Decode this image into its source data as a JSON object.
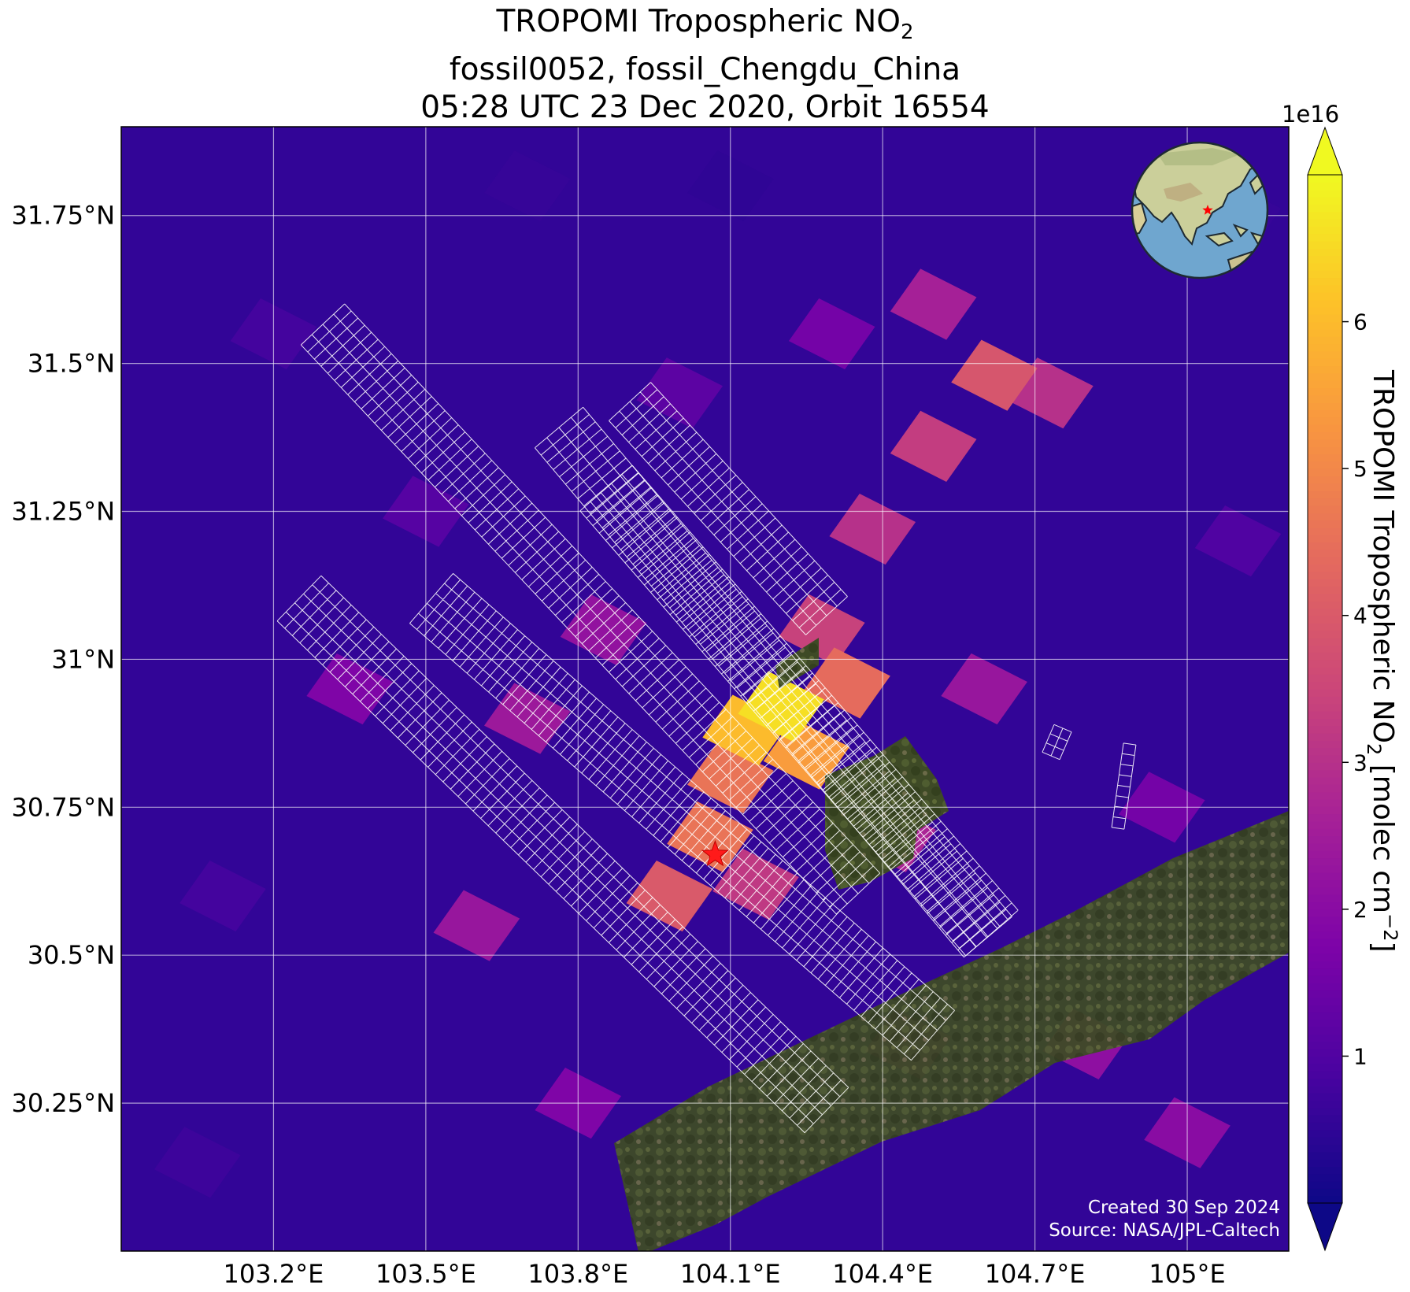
{
  "title": {
    "line1_prefix": "TROPOMI Tropospheric NO",
    "line1_sub": "2",
    "line2": "fossil0052, fossil_Chengdu_China",
    "line3": "05:28 UTC 23 Dec 2020, Orbit 16554"
  },
  "colorbar": {
    "label_prefix": "TROPOMI Tropospheric NO",
    "label_sub": "2",
    "label_units_prefix": " [molec cm",
    "label_sup": "−2",
    "label_suffix": "]",
    "exponent": "1e16",
    "colormap": "plasma",
    "range": [
      0,
      7
    ],
    "extend": "both",
    "ticks": [
      1,
      2,
      3,
      4,
      5,
      6
    ],
    "tick_labels": [
      "1",
      "2",
      "3",
      "4",
      "5",
      "6"
    ]
  },
  "credit": {
    "line1": "Created 30 Sep 2024",
    "line2": "Source: NASA/JPL-Caltech"
  },
  "inset": {
    "type": "orthographic-globe",
    "marker": "red-star"
  },
  "chart_data": {
    "type": "heatmap",
    "projection": "PlateCarree",
    "xlim": [
      102.9,
      105.2
    ],
    "ylim": [
      30.0,
      31.9
    ],
    "x_ticks": [
      103.2,
      103.5,
      103.8,
      104.1,
      104.4,
      104.7,
      105.0
    ],
    "x_tick_labels": [
      "103.2°E",
      "103.5°E",
      "103.8°E",
      "104.1°E",
      "104.4°E",
      "104.7°E",
      "105°E"
    ],
    "y_ticks": [
      30.25,
      30.5,
      30.75,
      31.0,
      31.25,
      31.5,
      31.75
    ],
    "y_tick_labels": [
      "30.25°N",
      "30.5°N",
      "30.75°N",
      "31°N",
      "31.25°N",
      "31.5°N",
      "31.75°N"
    ],
    "grid": true,
    "site_marker": {
      "lon": 104.07,
      "lat": 30.67,
      "symbol": "red-star"
    },
    "units_scale": 1e+16,
    "no2_pixels_approx": [
      {
        "lon": 104.2,
        "lat": 30.92,
        "value": 6.6
      },
      {
        "lon": 104.13,
        "lat": 30.88,
        "value": 6.0
      },
      {
        "lon": 104.25,
        "lat": 30.84,
        "value": 5.4
      },
      {
        "lon": 104.06,
        "lat": 30.7,
        "value": 4.6
      },
      {
        "lon": 104.33,
        "lat": 30.96,
        "value": 4.4
      },
      {
        "lon": 103.98,
        "lat": 30.6,
        "value": 4.0
      },
      {
        "lon": 104.62,
        "lat": 31.48,
        "value": 3.9
      },
      {
        "lon": 104.5,
        "lat": 31.36,
        "value": 3.3
      },
      {
        "lon": 104.38,
        "lat": 31.22,
        "value": 3.0
      },
      {
        "lon": 104.1,
        "lat": 30.8,
        "value": 4.6
      },
      {
        "lon": 104.28,
        "lat": 31.05,
        "value": 3.4
      },
      {
        "lon": 104.73,
        "lat": 31.45,
        "value": 3.0
      },
      {
        "lon": 104.5,
        "lat": 31.6,
        "value": 2.6
      },
      {
        "lon": 104.15,
        "lat": 30.62,
        "value": 3.2
      },
      {
        "lon": 104.42,
        "lat": 30.7,
        "value": 2.7
      },
      {
        "lon": 104.6,
        "lat": 30.95,
        "value": 2.3
      },
      {
        "lon": 103.7,
        "lat": 30.9,
        "value": 2.4
      },
      {
        "lon": 103.6,
        "lat": 30.55,
        "value": 2.3
      },
      {
        "lon": 103.35,
        "lat": 30.95,
        "value": 1.8
      },
      {
        "lon": 103.85,
        "lat": 31.05,
        "value": 2.2
      },
      {
        "lon": 104.8,
        "lat": 30.35,
        "value": 2.1
      },
      {
        "lon": 105.0,
        "lat": 30.2,
        "value": 2.0
      },
      {
        "lon": 104.45,
        "lat": 30.35,
        "value": 1.8
      },
      {
        "lon": 103.8,
        "lat": 30.25,
        "value": 1.8
      },
      {
        "lon": 104.95,
        "lat": 30.75,
        "value": 1.6
      },
      {
        "lon": 104.3,
        "lat": 31.55,
        "value": 1.6
      },
      {
        "lon": 104.0,
        "lat": 31.45,
        "value": 1.2
      },
      {
        "lon": 103.5,
        "lat": 31.25,
        "value": 1.1
      },
      {
        "lon": 103.2,
        "lat": 31.55,
        "value": 0.8
      },
      {
        "lon": 103.1,
        "lat": 30.6,
        "value": 0.8
      },
      {
        "lon": 103.05,
        "lat": 30.15,
        "value": 0.7
      },
      {
        "lon": 104.1,
        "lat": 31.8,
        "value": 0.5
      },
      {
        "lon": 103.7,
        "lat": 31.8,
        "value": 0.6
      },
      {
        "lon": 105.1,
        "lat": 31.75,
        "value": 0.6
      },
      {
        "lon": 105.1,
        "lat": 31.2,
        "value": 1.0
      }
    ]
  }
}
